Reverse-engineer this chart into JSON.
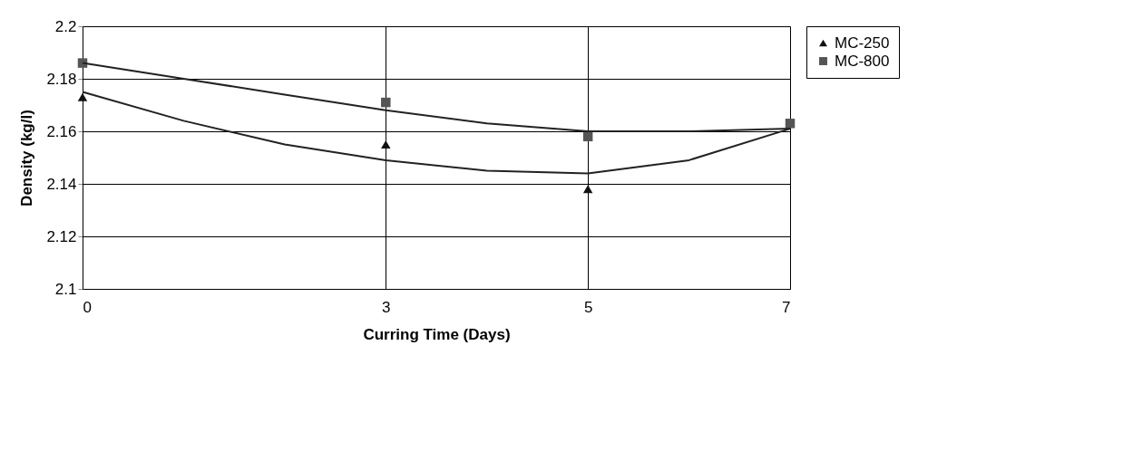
{
  "chart_data": {
    "type": "scatter",
    "xlabel": "Curring Time (Days)",
    "ylabel": "Density (kg/l)",
    "xlim": [
      0,
      7
    ],
    "xticks": [
      0,
      3,
      5,
      7
    ],
    "ylim": [
      2.1,
      2.2
    ],
    "yticks": [
      2.1,
      2.12,
      2.14,
      2.16,
      2.18,
      2.2
    ],
    "grid": true,
    "legend": "right",
    "series": [
      {
        "name": "MC-250",
        "color": "#111111",
        "marker": "triangle",
        "x": [
          0,
          3,
          5
        ],
        "values": [
          2.173,
          2.155,
          2.138
        ]
      },
      {
        "name": "MC-800",
        "color": "#555555",
        "marker": "square",
        "x": [
          0,
          3,
          5,
          7
        ],
        "values": [
          2.186,
          2.171,
          2.158,
          2.163
        ]
      },
      {
        "type": "line",
        "color": "#222222",
        "x": [
          0,
          1,
          2,
          3,
          4,
          5,
          6,
          7
        ],
        "values": [
          2.175,
          2.164,
          2.155,
          2.149,
          2.145,
          2.144,
          2.149,
          2.161
        ]
      },
      {
        "type": "line",
        "color": "#222222",
        "x": [
          0,
          1,
          2,
          3,
          4,
          5,
          6,
          7
        ],
        "values": [
          2.186,
          2.18,
          2.174,
          2.168,
          2.163,
          2.16,
          2.16,
          2.161
        ]
      }
    ]
  }
}
